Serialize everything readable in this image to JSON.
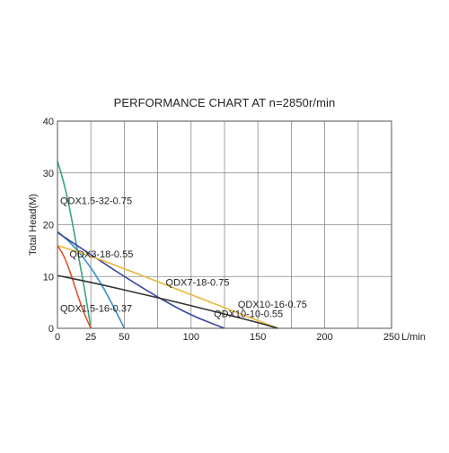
{
  "chart_data": {
    "type": "line",
    "title": "PERFORMANCE CHART AT n=2850r/min",
    "xlabel": "L/min",
    "ylabel": "Total Head(M)",
    "xlim": [
      0,
      250
    ],
    "ylim": [
      0,
      40
    ],
    "x_ticks": [
      0,
      50,
      100,
      150,
      200,
      250
    ],
    "x_tick_labels": [
      "0",
      "25",
      "50",
      "100",
      "150",
      "200",
      "250"
    ],
    "x_tick_label_values": [
      0,
      25,
      50,
      100,
      150,
      200,
      250
    ],
    "y_ticks": [
      0,
      10,
      20,
      30,
      40
    ],
    "y_tick_labels": [
      "0",
      "10",
      "20",
      "30",
      "40"
    ],
    "grid": true,
    "legend": "none (curve labels placed on plot)",
    "series": [
      {
        "name": "QDX1.5-32-0.75",
        "color": "#3aa57a",
        "x": [
          0,
          5,
          10,
          15,
          20,
          25
        ],
        "y": [
          32.3,
          28,
          22,
          15,
          8,
          0
        ]
      },
      {
        "name": "QDX3-18-0.55",
        "color": "#3a8fd0",
        "x": [
          0,
          10,
          20,
          30,
          40,
          50
        ],
        "y": [
          18.7,
          16.5,
          13.5,
          9.8,
          5.2,
          0
        ]
      },
      {
        "name": "QDX1.5-16-0.37",
        "color": "#e0552b",
        "x": [
          0,
          5,
          10,
          15,
          20,
          25
        ],
        "y": [
          16,
          14,
          10.5,
          6.5,
          2.8,
          0
        ]
      },
      {
        "name": "QDX7-18-0.75",
        "color": "#3a48a0",
        "x": [
          0,
          25,
          50,
          75,
          100,
          125
        ],
        "y": [
          18.5,
          14.2,
          10,
          6,
          2.5,
          0
        ]
      },
      {
        "name": "QDX10-16-0.75",
        "color": "#e8b838",
        "x": [
          0,
          30,
          60,
          90,
          120,
          150,
          165
        ],
        "y": [
          16,
          13.5,
          10.5,
          7.5,
          4.5,
          1.5,
          0
        ]
      },
      {
        "name": "QDX10-10-0.55",
        "color": "#333333",
        "x": [
          0,
          30,
          60,
          90,
          120,
          150,
          165
        ],
        "y": [
          10.2,
          8.6,
          6.8,
          5,
          3.1,
          1.1,
          0
        ]
      }
    ],
    "annotations": [
      {
        "text": "QDX1.5-32-0.75",
        "x": 2,
        "y": 24
      },
      {
        "text": "QDX3-18-0.55",
        "x": 9,
        "y": 13.7
      },
      {
        "text": "QDX7-18-0.75",
        "x": 81,
        "y": 8.2
      },
      {
        "text": "QDX10-16-0.75",
        "x": 135,
        "y": 4
      },
      {
        "text": "QDX1.5-16-0.37",
        "x": 2,
        "y": 3.2
      },
      {
        "text": "QDX10-10-0.55",
        "x": 117,
        "y": 2.2
      }
    ]
  }
}
